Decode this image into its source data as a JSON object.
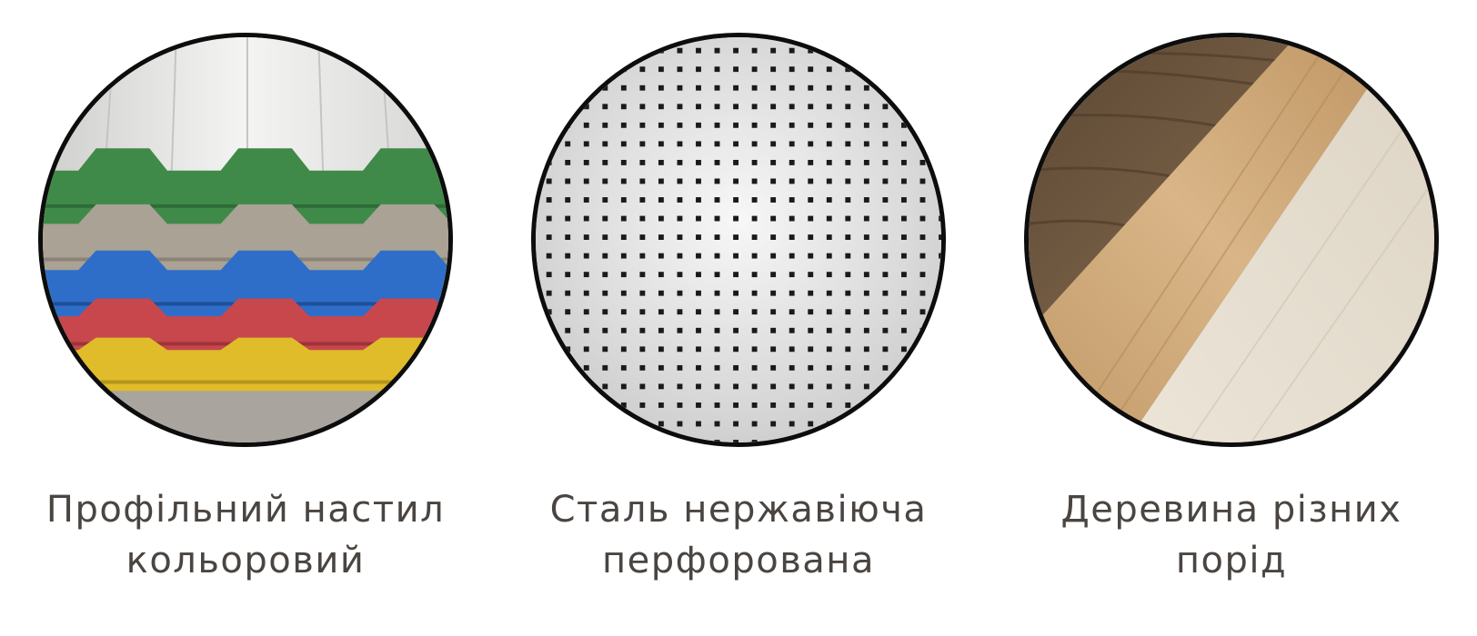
{
  "materials": [
    {
      "swatch_icon": "corrugated-colored-sheets-icon",
      "caption": [
        "Профільний настил",
        "кольоровий"
      ],
      "colors": [
        "#e8e8e6",
        "#3f8a49",
        "#a9a295",
        "#2e6ec9",
        "#c7474d",
        "#e0bc2a",
        "#a9a49d"
      ]
    },
    {
      "swatch_icon": "perforated-steel-icon",
      "caption": [
        "Сталь нержавіюча",
        "перфорована"
      ],
      "colors": [
        "#dcdcdc",
        "#1a1a1a"
      ]
    },
    {
      "swatch_icon": "wood-species-icon",
      "caption": [
        "Деревина різних",
        "порід"
      ],
      "colors": [
        "#6e5740",
        "#c9a375",
        "#e8e0d2"
      ]
    }
  ]
}
